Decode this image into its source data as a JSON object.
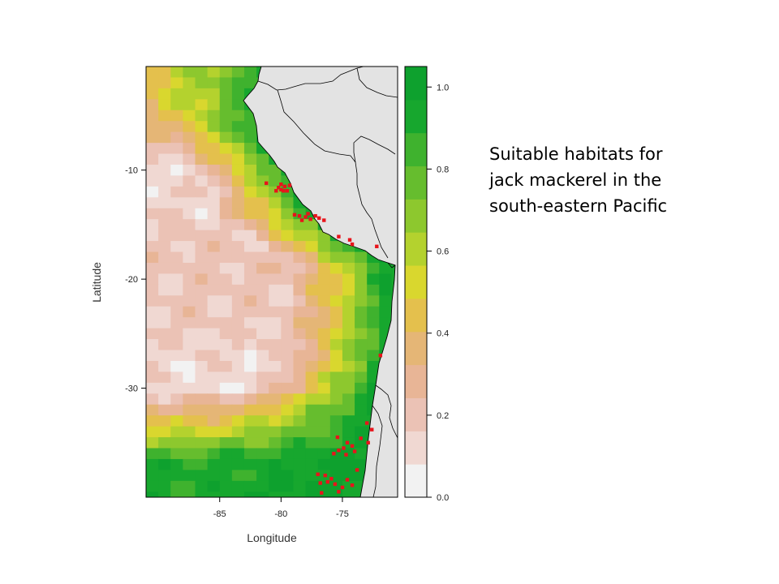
{
  "caption": {
    "lines": [
      "Suitable habitats for",
      "jack mackerel in the",
      "south-eastern Pacific"
    ]
  },
  "chart_data": {
    "type": "heatmap",
    "title": "",
    "xlabel": "Longitude",
    "ylabel": "Latitude",
    "xlim": [
      -91,
      -70.5
    ],
    "ylim": [
      -40,
      -0.5
    ],
    "x_ticks": [
      -85,
      -80,
      -75
    ],
    "y_ticks": [
      -10,
      -20,
      -30
    ],
    "grid": false,
    "legend": "colorbar right",
    "colorbar": {
      "range": [
        0.0,
        1.05
      ],
      "ticks": [
        0.0,
        0.2,
        0.4,
        0.6,
        0.8,
        1.0
      ],
      "colors": [
        "#F2F2F2",
        "#F0D8D2",
        "#EBC2B5",
        "#E8B596",
        "#E5B676",
        "#E4C04D",
        "#D9D72E",
        "#B4D22E",
        "#8DC82E",
        "#66BD2E",
        "#3FB22E",
        "#17A72E",
        "#0EA12E"
      ]
    },
    "habitat_suitability_profile": [
      {
        "lat": -2,
        "west_value": 0.52,
        "peak_value": 0.9
      },
      {
        "lat": -10,
        "west_value": 0.12,
        "peak_value": 1.0
      },
      {
        "lat": -20,
        "west_value": 0.2,
        "peak_value": 0.95
      },
      {
        "lat": -30,
        "west_value": 0.12,
        "peak_value": 0.95
      },
      {
        "lat": -37,
        "west_value": 0.9,
        "peak_value": 1.0
      }
    ],
    "occurrences": [
      {
        "lon": -81.2,
        "lat": -11.2
      },
      {
        "lon": -80.0,
        "lat": -11.3
      },
      {
        "lon": -79.7,
        "lat": -11.5
      },
      {
        "lon": -79.5,
        "lat": -11.9
      },
      {
        "lon": -79.8,
        "lat": -11.9
      },
      {
        "lon": -80.2,
        "lat": -11.6
      },
      {
        "lon": -80.0,
        "lat": -11.8
      },
      {
        "lon": -79.3,
        "lat": -11.4
      },
      {
        "lon": -80.4,
        "lat": -11.9
      },
      {
        "lon": -78.9,
        "lat": -14.1
      },
      {
        "lon": -78.5,
        "lat": -14.2
      },
      {
        "lon": -78.0,
        "lat": -14.3
      },
      {
        "lon": -77.6,
        "lat": -14.5
      },
      {
        "lon": -77.2,
        "lat": -14.2
      },
      {
        "lon": -76.9,
        "lat": -14.4
      },
      {
        "lon": -78.3,
        "lat": -14.6
      },
      {
        "lon": -77.8,
        "lat": -14.0
      },
      {
        "lon": -76.5,
        "lat": -14.6
      },
      {
        "lon": -75.3,
        "lat": -16.1
      },
      {
        "lon": -74.4,
        "lat": -16.4
      },
      {
        "lon": -74.2,
        "lat": -16.8
      },
      {
        "lon": -72.2,
        "lat": -17.0
      },
      {
        "lon": -71.9,
        "lat": -27.0
      },
      {
        "lon": -75.4,
        "lat": -34.5
      },
      {
        "lon": -74.6,
        "lat": -35.0
      },
      {
        "lon": -74.2,
        "lat": -35.3
      },
      {
        "lon": -74.9,
        "lat": -35.5
      },
      {
        "lon": -75.3,
        "lat": -35.7
      },
      {
        "lon": -74.0,
        "lat": -35.8
      },
      {
        "lon": -73.5,
        "lat": -34.6
      },
      {
        "lon": -72.9,
        "lat": -35.0
      },
      {
        "lon": -75.7,
        "lat": -36.0
      },
      {
        "lon": -74.7,
        "lat": -36.1
      },
      {
        "lon": -73.0,
        "lat": -33.2
      },
      {
        "lon": -72.6,
        "lat": -33.8
      },
      {
        "lon": -77.0,
        "lat": -37.9
      },
      {
        "lon": -76.4,
        "lat": -38.0
      },
      {
        "lon": -75.9,
        "lat": -38.3
      },
      {
        "lon": -76.2,
        "lat": -38.6
      },
      {
        "lon": -75.6,
        "lat": -38.8
      },
      {
        "lon": -75.0,
        "lat": -39.1
      },
      {
        "lon": -76.8,
        "lat": -38.7
      },
      {
        "lon": -75.3,
        "lat": -39.5
      },
      {
        "lon": -74.6,
        "lat": -38.4
      },
      {
        "lon": -76.7,
        "lat": -39.6
      },
      {
        "lon": -73.8,
        "lat": -37.5
      },
      {
        "lon": -74.2,
        "lat": -38.9
      }
    ]
  }
}
